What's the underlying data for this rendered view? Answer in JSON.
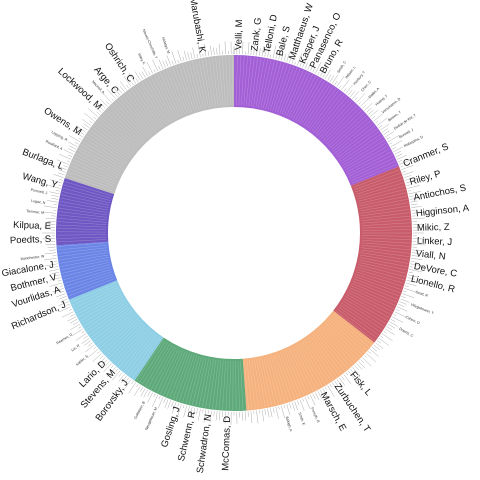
{
  "segments": [
    {
      "name": "purple",
      "color": "#a35fd6",
      "start": 0,
      "end": 68
    },
    {
      "name": "red",
      "color": "#c85c6a",
      "start": 68,
      "end": 128
    },
    {
      "name": "orange",
      "color": "#f5b27e",
      "start": 128,
      "end": 176
    },
    {
      "name": "green",
      "color": "#5faa7a",
      "start": 176,
      "end": 214
    },
    {
      "name": "light-blue",
      "color": "#8fcfe6",
      "start": 214,
      "end": 248
    },
    {
      "name": "blue",
      "color": "#6b85e6",
      "start": 248,
      "end": 266
    },
    {
      "name": "violet",
      "color": "#7058c4",
      "start": 266,
      "end": 288
    },
    {
      "name": "gray",
      "color": "#bdbdbd",
      "start": 288,
      "end": 360
    }
  ],
  "major_labels": [
    {
      "text": "Velli, M",
      "angle": 1.5
    },
    {
      "text": "Zank, G",
      "angle": 6.5
    },
    {
      "text": "Telloni, D",
      "angle": 10.5
    },
    {
      "text": "Bale, S",
      "angle": 14.5
    },
    {
      "text": "Matthaeus, W",
      "angle": 18.5
    },
    {
      "text": "Kasper, J",
      "angle": 22
    },
    {
      "text": "Panasenco, O",
      "angle": 25.5
    },
    {
      "text": "Bruno, R",
      "angle": 29
    },
    {
      "text": "Cranmer, S",
      "angle": 68
    },
    {
      "text": "Riley, P",
      "angle": 74
    },
    {
      "text": "Antiochos, S",
      "angle": 79
    },
    {
      "text": "Higginson, A",
      "angle": 84
    },
    {
      "text": "Mikic, Z",
      "angle": 88.5
    },
    {
      "text": "Linker, J",
      "angle": 92.5
    },
    {
      "text": "Viall, N",
      "angle": 96.5
    },
    {
      "text": "DeVore, C",
      "angle": 100.5
    },
    {
      "text": "Lionello, R",
      "angle": 104.5
    },
    {
      "text": "Fisk, L",
      "angle": 140
    },
    {
      "text": "Zurbuchen, T",
      "angle": 146
    },
    {
      "text": "Marsch, E",
      "angle": 151
    },
    {
      "text": "McComas, D",
      "angle": 182
    },
    {
      "text": "Schwadron, N",
      "angle": 188
    },
    {
      "text": "Schwenn, R",
      "angle": 193
    },
    {
      "text": "Gosling, J",
      "angle": 198
    },
    {
      "text": "Borovsky, J",
      "angle": 216
    },
    {
      "text": "Stevens, M",
      "angle": 221
    },
    {
      "text": "Lario, D",
      "angle": 225
    },
    {
      "text": "Richardson, J",
      "angle": 247
    },
    {
      "text": "Vourlidas, A",
      "angle": 252
    },
    {
      "text": "Bothmer, V",
      "angle": 256
    },
    {
      "text": "Giacalone, J",
      "angle": 260
    },
    {
      "text": "Poedts, S",
      "angle": 268
    },
    {
      "text": "Kilpua, E",
      "angle": 272
    },
    {
      "text": "Wang, Y",
      "angle": 285
    },
    {
      "text": "Burlaga, L",
      "angle": 291
    },
    {
      "text": "Owens, M",
      "angle": 303
    },
    {
      "text": "Lockwood, M",
      "angle": 313
    },
    {
      "text": "Arge, C",
      "angle": 320
    },
    {
      "text": "Oshrich, C",
      "angle": 326
    },
    {
      "text": "Marubashi, K",
      "angle": 350
    }
  ],
  "minor_labels": [
    {
      "text": "Smith, C",
      "angle": 33
    },
    {
      "text": "Wilson, L",
      "angle": 36
    },
    {
      "text": "Horbury, T",
      "angle": 39
    },
    {
      "text": "Chen, C",
      "angle": 42
    },
    {
      "text": "Mallet, A",
      "angle": 45
    },
    {
      "text": "Huang, J",
      "angle": 48
    },
    {
      "text": "Verscharen, D",
      "angle": 51
    },
    {
      "text": "Bowen, T",
      "angle": 54
    },
    {
      "text": "Dudok de Wit, T",
      "angle": 57
    },
    {
      "text": "Bonnell, J",
      "angle": 60
    },
    {
      "text": "Malaspina, D",
      "angle": 63
    },
    {
      "text": "Scott, R",
      "angle": 108
    },
    {
      "text": "Wiegelmann, T",
      "angle": 112
    },
    {
      "text": "Cohen, O",
      "angle": 116
    },
    {
      "text": "Downs, C",
      "angle": 120
    },
    {
      "text": "Forsyth, R",
      "angle": 156
    },
    {
      "text": "Smith, E",
      "angle": 160
    },
    {
      "text": "Balogh, A",
      "angle": 164
    },
    {
      "text": "Neugebauer, M",
      "angle": 204
    },
    {
      "text": "Goldstein, B",
      "angle": 208
    },
    {
      "text": "Kahler, S",
      "angle": 230
    },
    {
      "text": "Lin, R",
      "angle": 234
    },
    {
      "text": "Reames, D",
      "angle": 238
    },
    {
      "text": "Manchester, W",
      "angle": 263
    },
    {
      "text": "Temmer, M",
      "angle": 276
    },
    {
      "text": "Lugaz, N",
      "angle": 279
    },
    {
      "text": "Pomoell, J",
      "angle": 282
    },
    {
      "text": "Rouillard, A",
      "angle": 296
    },
    {
      "text": "Lepping, R",
      "angle": 299
    },
    {
      "text": "Macneil, A",
      "angle": 317
    },
    {
      "text": "Riley, K",
      "angle": 332
    },
    {
      "text": "Nieves-Chinchilla, T",
      "angle": 336
    },
    {
      "text": "Hidalgo, M",
      "angle": 340
    }
  ]
}
